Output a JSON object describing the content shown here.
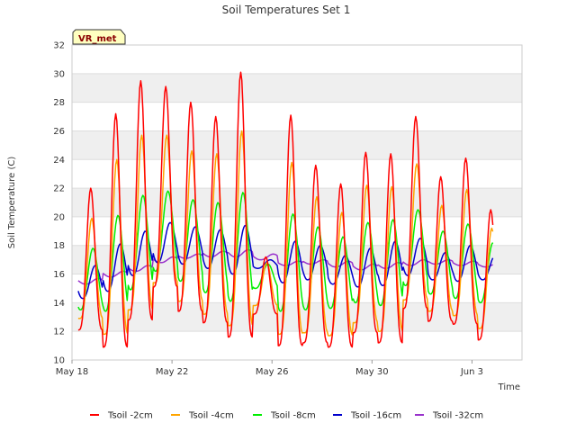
{
  "chart_data": {
    "type": "line",
    "title": "Soil Temperatures Set 1",
    "xlabel": "Time",
    "ylabel": "Soil Temperature (C)",
    "badge": "VR_met",
    "ylim": [
      10,
      32
    ],
    "yticks": [
      10,
      12,
      14,
      16,
      18,
      20,
      22,
      24,
      26,
      28,
      30,
      32
    ],
    "xlim": [
      "2023-05-18",
      "2023-06-05"
    ],
    "xticks": [
      {
        "date": "2023-05-18",
        "label": "May 18"
      },
      {
        "date": "2023-05-22",
        "label": "May 22"
      },
      {
        "date": "2023-05-26",
        "label": "May 26"
      },
      {
        "date": "2023-05-30",
        "label": "May 30"
      },
      {
        "date": "2023-06-03",
        "label": "Jun 3"
      }
    ],
    "grid": true,
    "legend_position": "bottom",
    "days": [
      "May 18",
      "May 19",
      "May 20",
      "May 21",
      "May 22",
      "May 23",
      "May 24",
      "May 25",
      "May 26",
      "May 27",
      "May 28",
      "May 29",
      "May 30",
      "May 31",
      "Jun 1",
      "Jun 2",
      "Jun 3"
    ],
    "series": [
      {
        "name": "Tsoil -2cm",
        "color": "#ff0000",
        "daily_min": [
          12.1,
          10.9,
          12.8,
          15.1,
          13.4,
          12.6,
          11.6,
          13.2,
          11.0,
          11.2,
          10.9,
          11.9,
          11.2,
          13.6,
          12.7,
          12.5,
          11.4
        ],
        "daily_max": [
          22.0,
          27.2,
          29.5,
          29.1,
          28.0,
          27.0,
          30.1,
          17.2,
          27.1,
          23.6,
          22.3,
          24.5,
          24.4,
          27.0,
          22.8,
          24.1,
          20.5
        ]
      },
      {
        "name": "Tsoil -4cm",
        "color": "#ffa500",
        "daily_min": [
          12.9,
          11.8,
          13.5,
          15.4,
          14.1,
          13.2,
          12.4,
          13.8,
          11.8,
          11.9,
          11.7,
          12.6,
          12.0,
          14.2,
          13.4,
          13.1,
          12.2
        ],
        "daily_max": [
          19.9,
          24.0,
          25.7,
          25.7,
          24.6,
          24.4,
          26.0,
          16.8,
          23.8,
          21.4,
          20.3,
          22.2,
          22.1,
          23.7,
          20.8,
          21.9,
          19.2
        ]
      },
      {
        "name": "Tsoil -8cm",
        "color": "#00ee00",
        "daily_min": [
          13.5,
          13.4,
          14.9,
          16.2,
          15.5,
          14.7,
          14.1,
          15.0,
          13.4,
          13.5,
          13.6,
          14.0,
          13.8,
          15.2,
          14.6,
          14.3,
          14.0
        ],
        "daily_max": [
          17.8,
          20.1,
          21.5,
          21.8,
          21.2,
          21.0,
          21.7,
          16.7,
          20.2,
          19.3,
          18.6,
          19.6,
          19.8,
          20.5,
          19.0,
          19.5,
          18.2
        ]
      },
      {
        "name": "Tsoil -16cm",
        "color": "#0000cc",
        "daily_min": [
          14.3,
          14.8,
          15.9,
          16.8,
          16.7,
          16.4,
          16.0,
          16.4,
          15.4,
          15.6,
          15.3,
          15.1,
          15.2,
          15.9,
          15.6,
          15.5,
          15.6
        ],
        "daily_max": [
          16.6,
          18.1,
          19.0,
          19.6,
          19.3,
          19.1,
          19.4,
          17.0,
          18.3,
          18.0,
          17.3,
          17.8,
          18.3,
          18.5,
          17.5,
          18.0,
          17.3
        ]
      },
      {
        "name": "Tsoil -32cm",
        "color": "#9932cc",
        "daily_min": [
          15.3,
          15.8,
          16.2,
          16.8,
          17.1,
          17.2,
          17.2,
          17.0,
          16.6,
          16.7,
          16.5,
          16.3,
          16.4,
          16.6,
          16.7,
          16.6,
          16.5
        ],
        "daily_max": [
          15.7,
          16.2,
          16.6,
          17.2,
          17.4,
          17.6,
          17.7,
          17.4,
          16.9,
          17.0,
          16.9,
          16.7,
          16.8,
          17.0,
          17.0,
          16.9,
          16.8
        ]
      }
    ]
  }
}
